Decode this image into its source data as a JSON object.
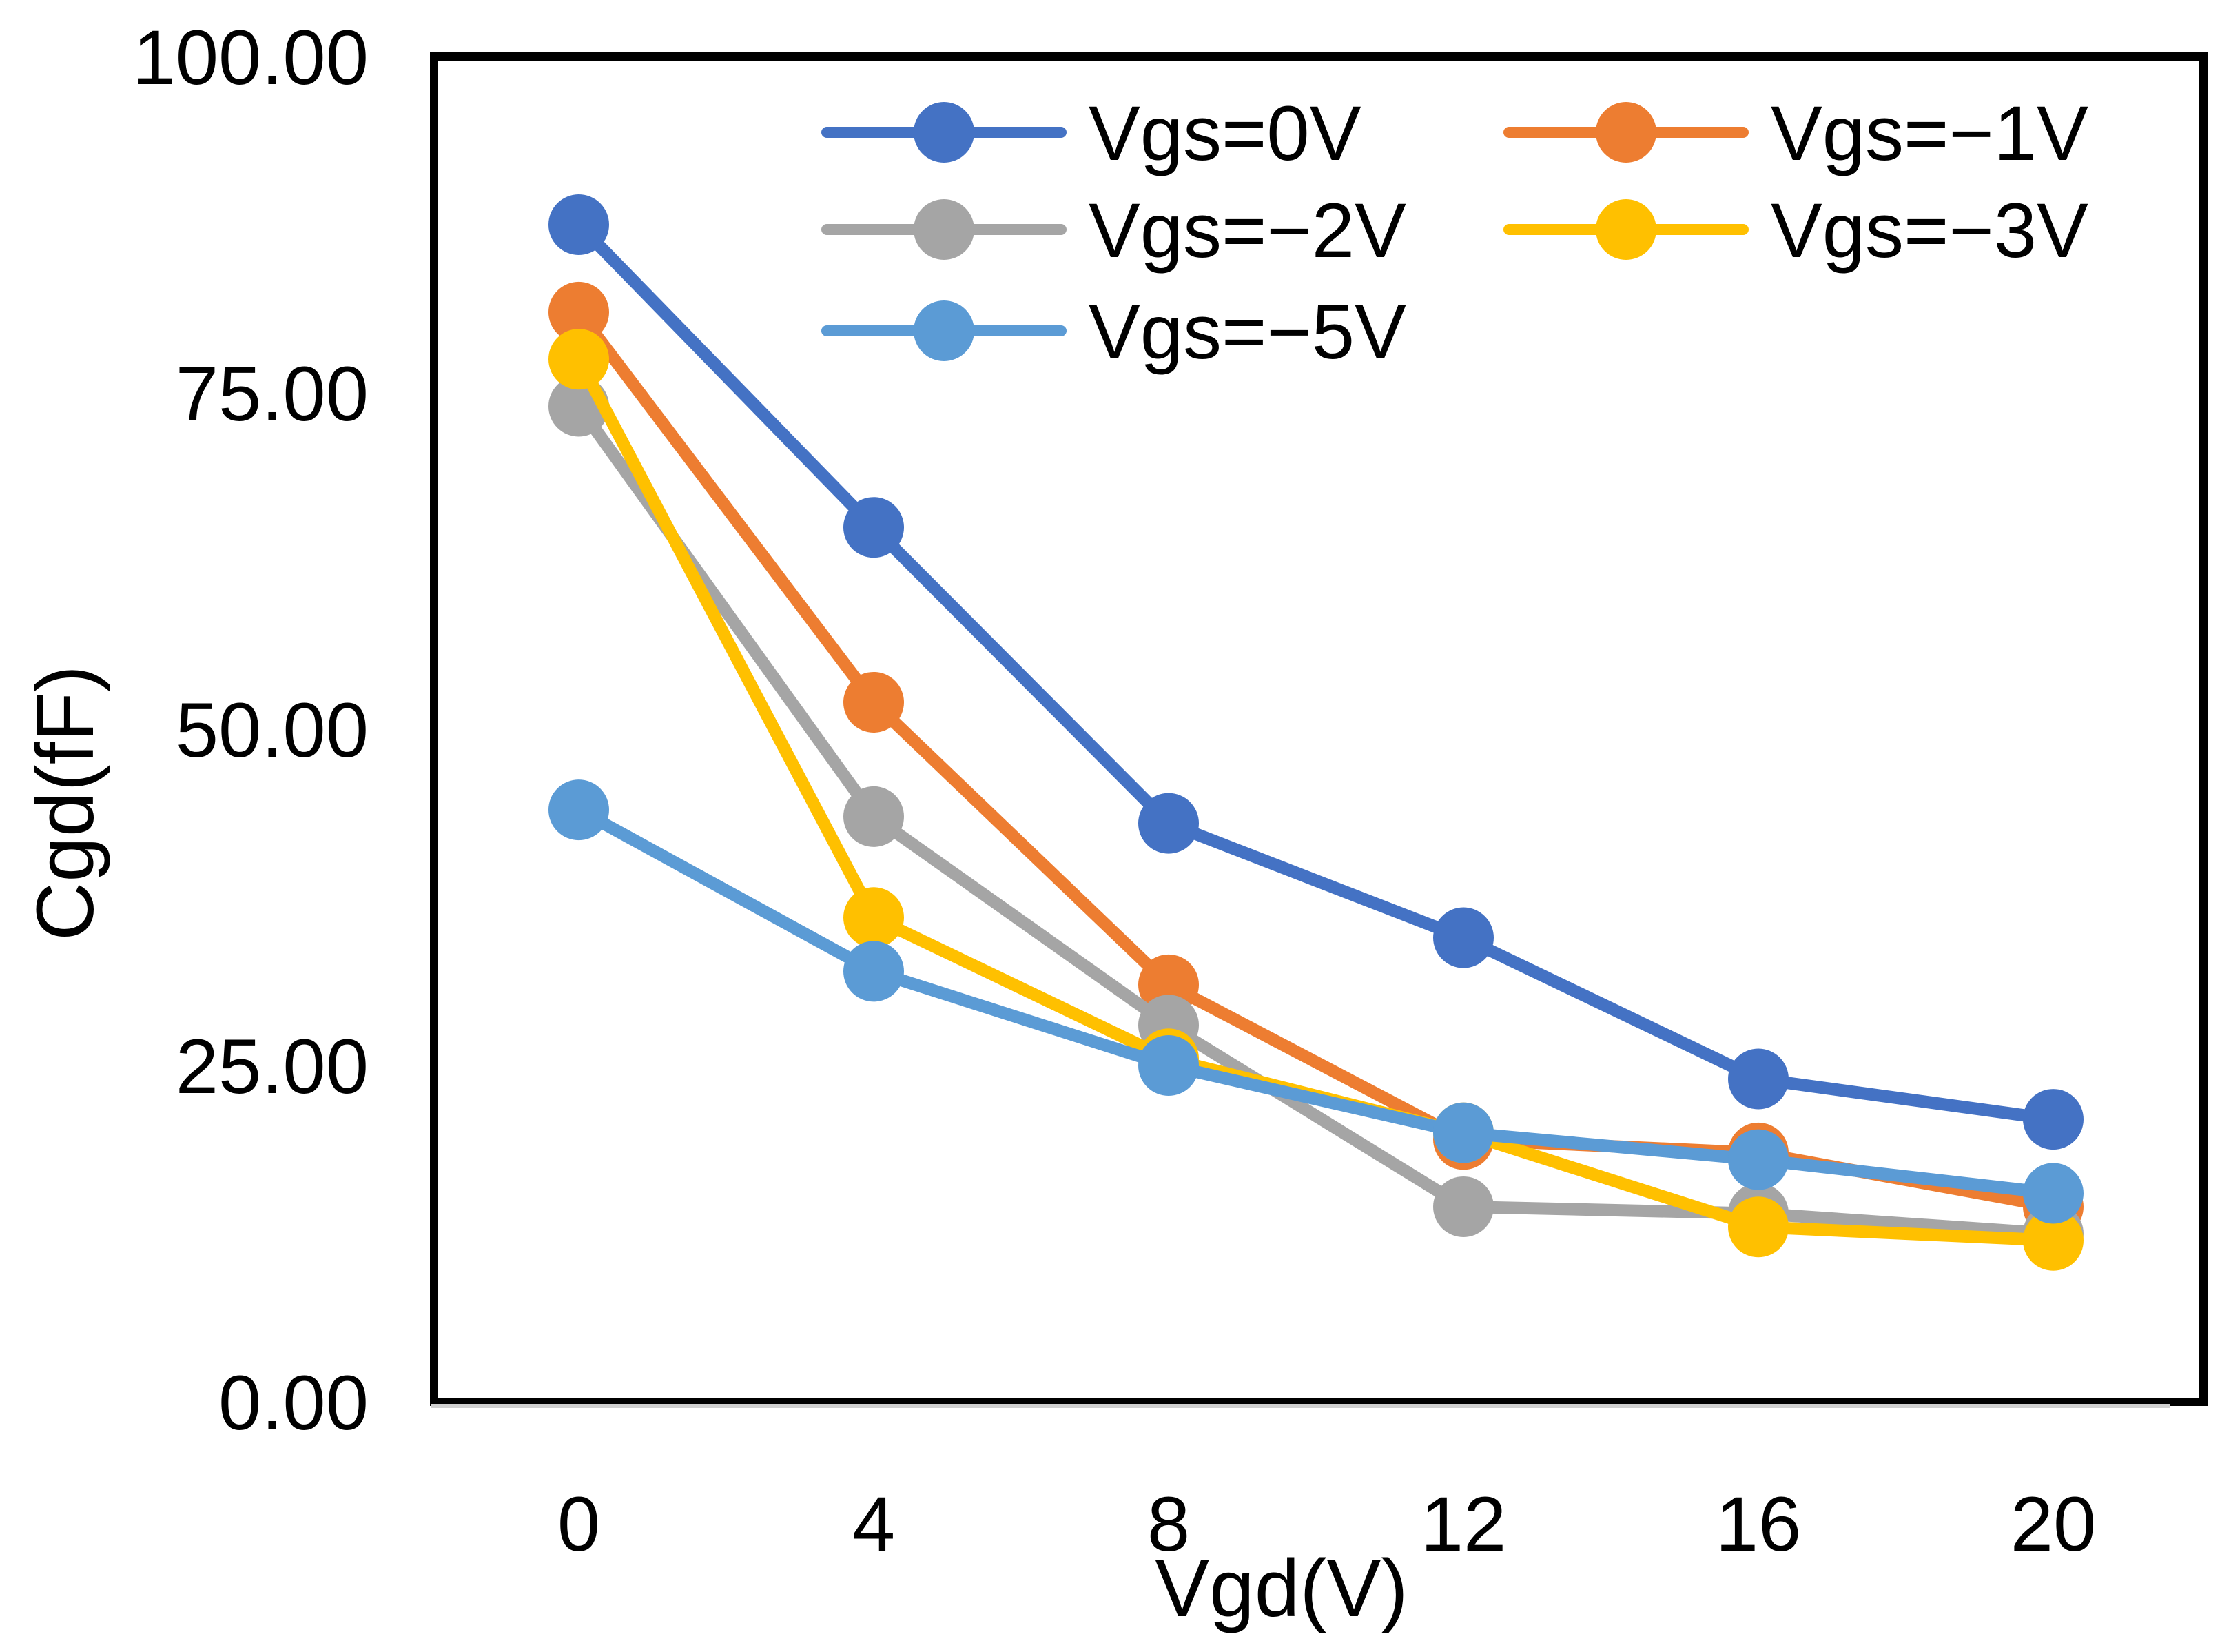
{
  "chart_data": {
    "type": "line",
    "title": "",
    "xlabel": "Vgd(V)",
    "ylabel": "Cgd(fF)",
    "x": [
      0,
      4,
      8,
      12,
      16,
      20
    ],
    "x_tick_labels": [
      "0",
      "4",
      "8",
      "12",
      "16",
      "20"
    ],
    "ylim": [
      0,
      100
    ],
    "y_ticks": [
      0,
      25,
      50,
      75,
      100
    ],
    "y_tick_labels": [
      "0.00",
      "25.00",
      "50.00",
      "75.00",
      "100.00"
    ],
    "grid": false,
    "legend_position": "top-right",
    "series": [
      {
        "name": "Vgs=0V",
        "color": "#4472C4",
        "values": [
          87.5,
          65.0,
          43.0,
          34.5,
          24.0,
          21.0
        ]
      },
      {
        "name": "Vgs=−1V",
        "color": "#ED7D31",
        "values": [
          81.0,
          52.0,
          31.0,
          19.5,
          18.5,
          14.5
        ]
      },
      {
        "name": "Vgs=−2V",
        "color": "#A5A5A5",
        "values": [
          74.0,
          43.5,
          28.0,
          14.5,
          14.0,
          12.5
        ]
      },
      {
        "name": "Vgs=−3V",
        "color": "#FFC000",
        "values": [
          77.5,
          36.0,
          25.5,
          20.0,
          13.0,
          12.0
        ]
      },
      {
        "name": "Vgs=−5V",
        "color": "#5B9BD5",
        "values": [
          44.0,
          32.0,
          25.0,
          20.0,
          18.0,
          15.5
        ]
      }
    ]
  }
}
